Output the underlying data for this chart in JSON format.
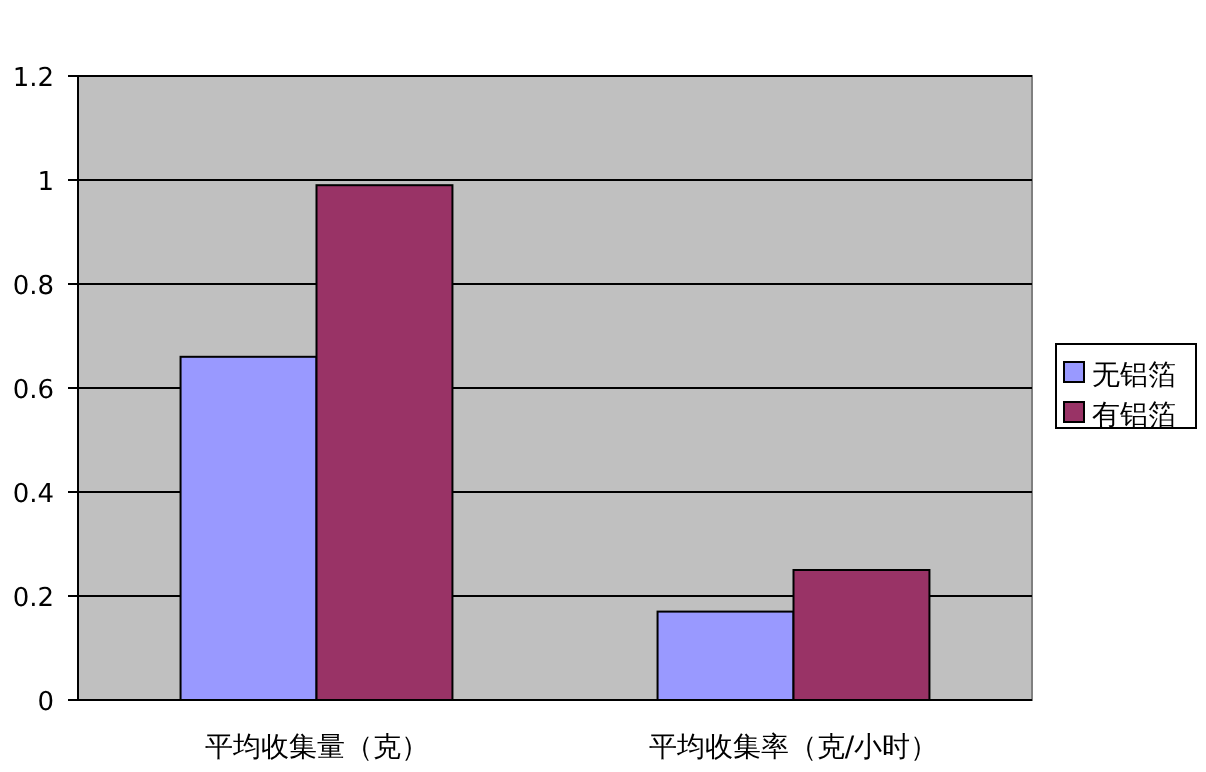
{
  "chart_data": {
    "type": "bar",
    "categories": [
      "平均收集量（克）",
      "平均收集率（克/小时）"
    ],
    "series": [
      {
        "name": "无铝箔",
        "color": "#9999ff",
        "values": [
          0.66,
          0.17
        ]
      },
      {
        "name": "有铝箔",
        "color": "#993366",
        "values": [
          0.99,
          0.25
        ]
      }
    ],
    "ylim": [
      0,
      1.2
    ],
    "yticks": [
      0,
      0.2,
      0.4,
      0.6,
      0.8,
      1,
      1.2
    ],
    "grid": "y",
    "legend": "right"
  }
}
